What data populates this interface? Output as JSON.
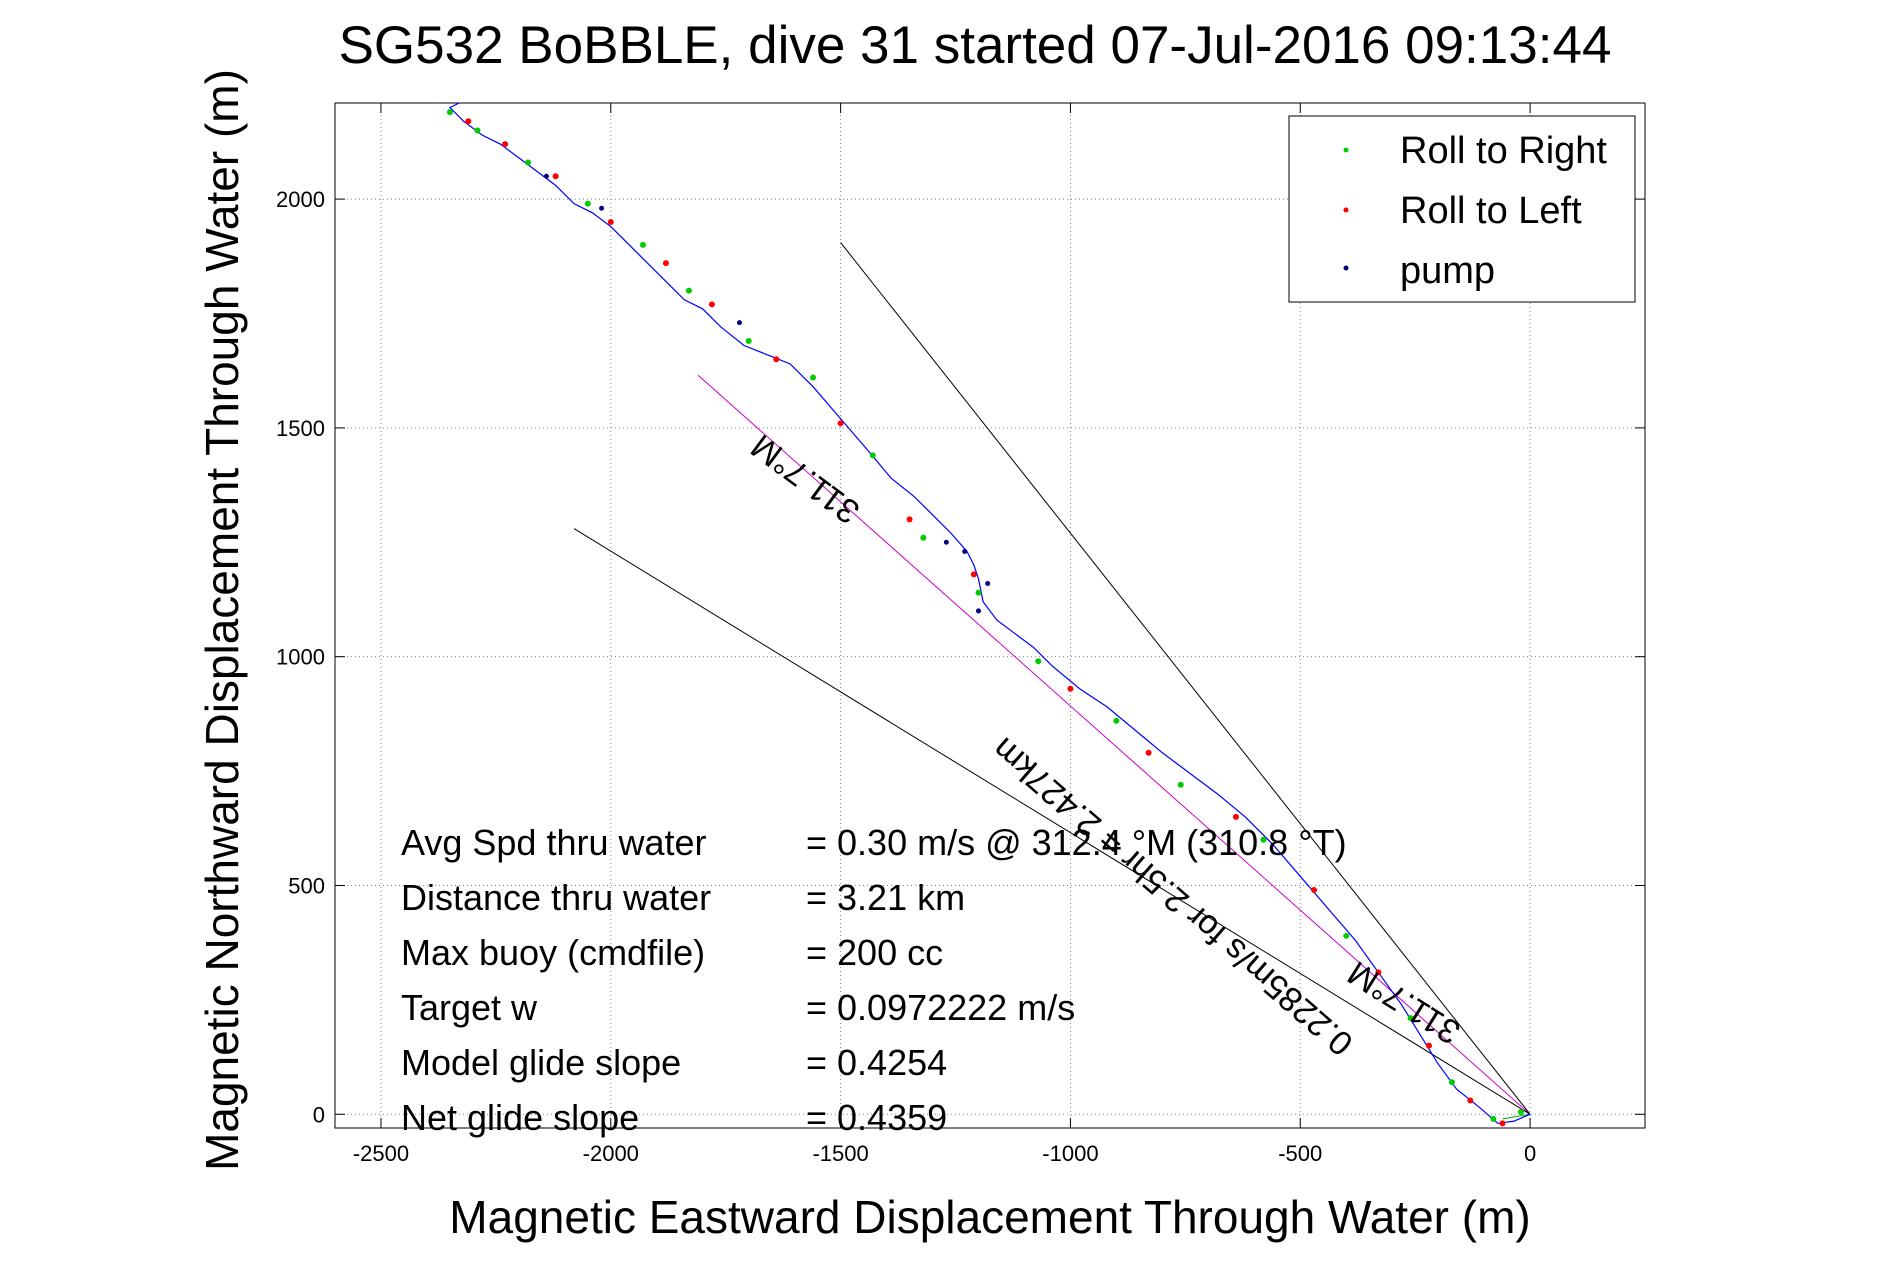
{
  "chart_data": {
    "type": "line",
    "title": "SG532 BoBBLE, dive 31 started 07-Jul-2016 09:13:44",
    "xlabel": "Magnetic Eastward Displacement Through Water (m)",
    "ylabel": "Magnetic Northward Displacement Through Water (m)",
    "xlim": [
      -2600,
      250
    ],
    "ylim": [
      -30,
      2210
    ],
    "xticks": [
      -2500,
      -2000,
      -1500,
      -1000,
      -500,
      0
    ],
    "xtick_labels": [
      "-2500",
      "-2000",
      "-1500",
      "-1000",
      "-500",
      "0"
    ],
    "yticks": [
      0,
      500,
      1000,
      1500,
      2000
    ],
    "ytick_labels": [
      "0",
      "500",
      "1000",
      "1500",
      "2000"
    ],
    "grid": true,
    "legend_position": "top-right",
    "legend": [
      {
        "label": "Roll to Right",
        "color": "#00cc00"
      },
      {
        "label": "Roll to Left",
        "color": "#ff0000"
      },
      {
        "label": "pump",
        "color": "#000080"
      }
    ],
    "track": {
      "color": "#0000ff",
      "x": [
        0,
        -35,
        -70,
        -110,
        -160,
        -200,
        -240,
        -280,
        -330,
        -380,
        -440,
        -500,
        -560,
        -620,
        -680,
        -740,
        -800,
        -860,
        -920,
        -980,
        -1040,
        -1080,
        -1120,
        -1160,
        -1190,
        -1200,
        -1210,
        -1225,
        -1260,
        -1300,
        -1340,
        -1390,
        -1440,
        -1500,
        -1560,
        -1610,
        -1660,
        -1710,
        -1760,
        -1800,
        -1840,
        -1880,
        -1920,
        -1960,
        -2000,
        -2040,
        -2080,
        -2120,
        -2160,
        -2200,
        -2240,
        -2280,
        -2320,
        -2350,
        -2330
      ],
      "y": [
        0,
        -15,
        -20,
        15,
        55,
        110,
        175,
        240,
        310,
        380,
        450,
        520,
        590,
        650,
        700,
        745,
        790,
        840,
        890,
        930,
        980,
        1020,
        1050,
        1080,
        1120,
        1170,
        1200,
        1230,
        1270,
        1310,
        1350,
        1390,
        1450,
        1520,
        1590,
        1640,
        1660,
        1680,
        1720,
        1760,
        1780,
        1820,
        1860,
        1900,
        1940,
        1970,
        1990,
        2030,
        2060,
        2090,
        2120,
        2140,
        2170,
        2200,
        2210
      ]
    },
    "roll_right_points": {
      "x": [
        -20,
        -80,
        -170,
        -260,
        -400,
        -580,
        -760,
        -900,
        -1070,
        -1200,
        -1320,
        -1430,
        -1560,
        -1700,
        -1830,
        -1930,
        -2050,
        -2180,
        -2290,
        -2350
      ],
      "y": [
        5,
        -10,
        70,
        210,
        390,
        600,
        720,
        860,
        990,
        1140,
        1260,
        1440,
        1610,
        1690,
        1800,
        1900,
        1990,
        2080,
        2150,
        2190
      ]
    },
    "roll_left_points": {
      "x": [
        -60,
        -130,
        -220,
        -330,
        -470,
        -640,
        -830,
        -1000,
        -1210,
        -1350,
        -1500,
        -1640,
        -1780,
        -1880,
        -2000,
        -2120,
        -2230,
        -2310
      ],
      "y": [
        -20,
        30,
        150,
        310,
        490,
        650,
        790,
        930,
        1180,
        1300,
        1510,
        1650,
        1770,
        1860,
        1950,
        2050,
        2120,
        2170
      ]
    },
    "pump_points": {
      "x": [
        -1200,
        -1230,
        -1270,
        -1180,
        -2140,
        -2020,
        -1720
      ],
      "y": [
        1100,
        1230,
        1250,
        1160,
        2050,
        1980,
        1730
      ]
    },
    "lines": [
      {
        "name": "dive-mean-heading-line",
        "color": "#cc00cc",
        "x": [
          0,
          -1810
        ],
        "y": [
          0,
          1615
        ]
      },
      {
        "name": "heading-bound-line-upper",
        "color": "#000000",
        "x": [
          0,
          -1500
        ],
        "y": [
          0,
          1905
        ]
      },
      {
        "name": "heading-bound-line-lower",
        "color": "#000000",
        "x": [
          0,
          -2080
        ],
        "y": [
          0,
          1280
        ]
      },
      {
        "name": "short-segment",
        "color": "#00aa00",
        "x": [
          0,
          -60
        ],
        "y": [
          0,
          -10
        ]
      }
    ],
    "rotated_labels": [
      {
        "text": "311.7°M"
      },
      {
        "text": "0.2285m/s for 2.5hr = 2.427km"
      },
      {
        "text": "311.7°M"
      }
    ],
    "stats": [
      {
        "label": "Avg Spd thru water",
        "value": "=  0.30 m/s @ 312.4 °M (310.8 °T)"
      },
      {
        "label": "Distance thru water",
        "value": "=  3.21 km"
      },
      {
        "label": "Max buoy (cmdfile)",
        "value": "= 200 cc"
      },
      {
        "label": "Target w",
        "value": "= 0.0972222 m/s"
      },
      {
        "label": "Model glide slope",
        "value": "= 0.4254"
      },
      {
        "label": "Net glide slope",
        "value": "= 0.4359"
      }
    ]
  }
}
